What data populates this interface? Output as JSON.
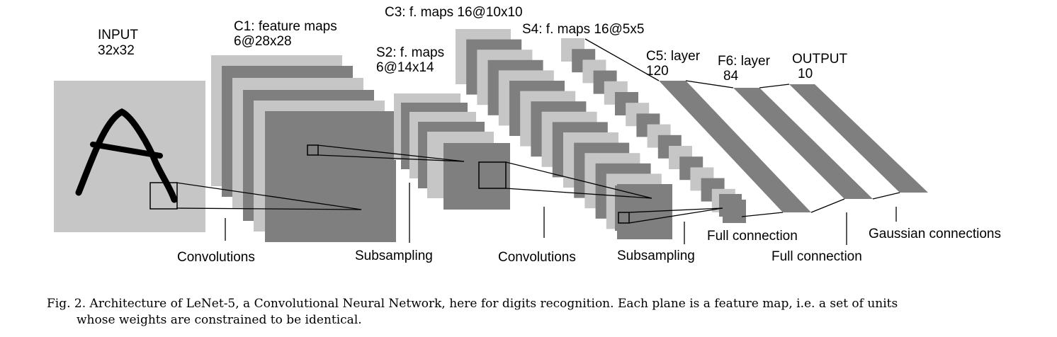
{
  "layers": {
    "input": {
      "name": "INPUT",
      "size": "32x32"
    },
    "c1": {
      "name": "C1: feature maps",
      "size": "6@28x28"
    },
    "s2": {
      "name": "S2: f. maps",
      "size": "6@14x14"
    },
    "c3": {
      "name": "C3: f. maps 16@10x10"
    },
    "s4": {
      "name": "S4: f. maps 16@5x5"
    },
    "c5": {
      "name": "C5: layer",
      "size": "120"
    },
    "f6": {
      "name": "F6: layer",
      "size": "84"
    },
    "output": {
      "name": "OUTPUT",
      "size": "10"
    }
  },
  "operations": {
    "conv1": "Convolutions",
    "sub1": "Subsampling",
    "conv2": "Convolutions",
    "sub2": "Subsampling",
    "full1": "Full connection",
    "full2": "Full connection",
    "gauss": "Gaussian connections"
  },
  "caption": {
    "line1": "Fig. 2.   Architecture of LeNet-5, a Convolutional Neural Network, here for digits recognition. Each plane is a feature map, i.e. a set of units",
    "line2": "whose weights are constrained to be identical."
  },
  "colors": {
    "light": "#c6c6c6",
    "dark": "#7f7f7f",
    "ink": "#000000"
  }
}
